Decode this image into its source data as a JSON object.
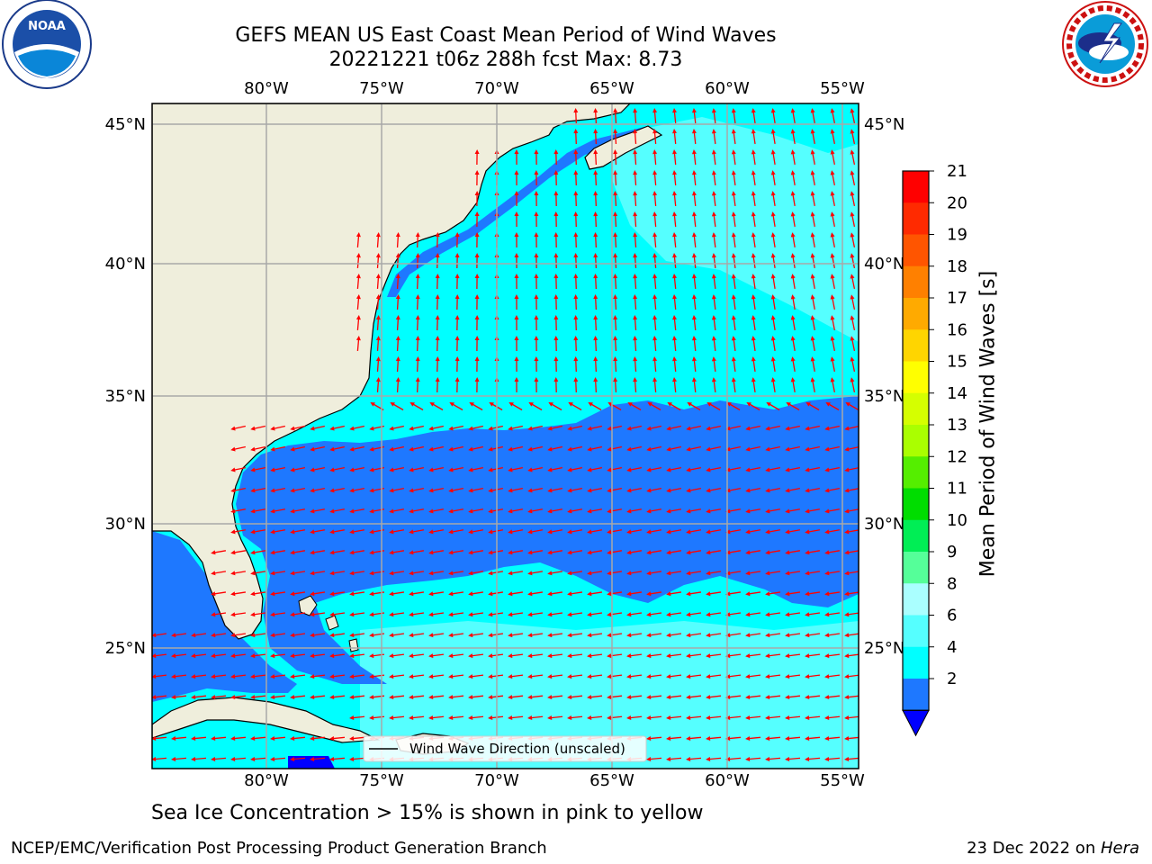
{
  "header": {
    "title_line1": "GEFS MEAN US East Coast Mean Period of Wind Waves",
    "title_line2": "20221221 t06z 288h fcst   Max: 8.73"
  },
  "logos": {
    "left": {
      "name": "NOAA",
      "text": "NOAA",
      "ring_text": "NATIONAL OCEANIC AND ATMOSPHERIC ADMINISTRATION · U.S. DEPARTMENT OF COMMERCE"
    },
    "right": {
      "name": "National Weather Service",
      "ring_text": "NATIONAL WEATHER SERVICE"
    }
  },
  "map": {
    "lon_labels": [
      "80°W",
      "75°W",
      "70°W",
      "65°W",
      "60°W",
      "55°W"
    ],
    "lat_labels": [
      "45°N",
      "40°N",
      "35°N",
      "30°N",
      "25°N"
    ],
    "legend_label": "Wind Wave Direction (unscaled)"
  },
  "colorbar": {
    "title": "Mean Period of Wind Waves [s]",
    "ticks": [
      "21",
      "20",
      "19",
      "18",
      "17",
      "16",
      "15",
      "14",
      "13",
      "12",
      "11",
      "10",
      "9",
      "8",
      "6",
      "4",
      "2"
    ],
    "colors": [
      "#ff0000",
      "#ff2a00",
      "#ff5500",
      "#ff8000",
      "#ffaa00",
      "#ffd500",
      "#ffff00",
      "#d5ff00",
      "#aaff00",
      "#55ee00",
      "#00dd00",
      "#00ee55",
      "#55ff99",
      "#aaffff",
      "#55ffff",
      "#00ffff",
      "#1e78ff"
    ],
    "under_color": "#0000ff"
  },
  "caption": "Sea Ice Concentration > 15% is shown in pink to yellow",
  "footer": {
    "left": "NCEP/EMC/Verification Post Processing Product Generation Branch",
    "right_date": "23 Dec 2022 on ",
    "right_host": "Hera"
  },
  "colors": {
    "land": "#efeedc",
    "ocean_4_6": "#00ffff",
    "ocean_6_8": "#55ffff",
    "ocean_2_4": "#1e78ff",
    "arrow": "#ff0000",
    "grid": "#a8a8a8"
  }
}
